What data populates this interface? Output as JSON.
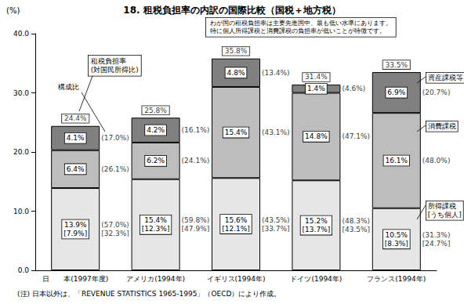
{
  "chart_data": {
    "type": "bar",
    "title": "18. 租税負担率の内訳の国際比較（国税＋地方税）",
    "subtitle": "わが国の租税負担率は主要先進国中、最も低い水準にあります。\n特に個人所得課税と消費課税の負担率が低いことが特徴です。",
    "y_label": "(%)",
    "note": "(注) 日本以外は、「REVENUE STATISTICS 1965-1995」（OECD）により作成。",
    "annotations": {
      "total": "租税負担率\n(対国民所得比)",
      "share": "構成比"
    },
    "categories": [
      "日　　本(1997年度)",
      "アメリカ(1994年)",
      "イギリス(1994年)",
      "ドイツ(1994年)",
      "フランス(1994年)"
    ],
    "stacked": true,
    "data_labels": true,
    "grid": false,
    "ylim": [
      0,
      40
    ],
    "yticks": [
      {
        "value": 0,
        "label": "0.0"
      },
      {
        "value": 10,
        "label": "10.0"
      },
      {
        "value": 20,
        "label": "20.0"
      },
      {
        "value": 30,
        "label": "30.0"
      },
      {
        "value": 40,
        "label": "40.0"
      }
    ],
    "totals": [
      24.4,
      25.8,
      35.8,
      31.4,
      33.5
    ],
    "total_labels": [
      "24.4%",
      "25.8%",
      "35.8%",
      "31.4%",
      "33.5%"
    ],
    "series": [
      {
        "name": "所得課税\n[うち個人]",
        "color": "#e6e6e6",
        "values": [
          13.9,
          15.4,
          15.6,
          15.2,
          10.5
        ],
        "value_labels": [
          "13.9%",
          "15.4%",
          "15.6%",
          "15.2%",
          "10.5%"
        ],
        "individual_values": [
          7.9,
          12.3,
          12.1,
          13.7,
          8.3
        ],
        "individual_labels": [
          "[7.9%]",
          "[12.3%]",
          "[12.1%]",
          "[13.7%]",
          "[8.3%]"
        ],
        "shares": [
          57.0,
          59.8,
          43.5,
          48.3,
          31.3
        ],
        "share_labels": [
          "(57.0%)",
          "(59.8%)",
          "(43.5%)",
          "(48.3%)",
          "(31.3%)"
        ],
        "individual_shares": [
          32.3,
          47.9,
          33.7,
          43.5,
          24.7
        ],
        "individual_share_labels": [
          "[32.3%]",
          "[47.9%]",
          "[33.7%]",
          "[43.5%]",
          "[24.7%]"
        ]
      },
      {
        "name": "消費課税",
        "color": "#bdbdbd",
        "values": [
          6.4,
          6.2,
          15.4,
          14.8,
          16.1
        ],
        "value_labels": [
          "6.4%",
          "6.2%",
          "15.4%",
          "14.8%",
          "16.1%"
        ],
        "shares": [
          26.1,
          24.1,
          43.1,
          47.1,
          48.0
        ],
        "share_labels": [
          "(26.1%)",
          "(24.1%)",
          "(43.1%)",
          "(47.1%)",
          "(48.0%)"
        ]
      },
      {
        "name": "資産課税等",
        "color": "#808080",
        "values": [
          4.1,
          4.2,
          4.8,
          1.4,
          6.9
        ],
        "value_labels": [
          "4.1%",
          "4.2%",
          "4.8%",
          "1.4%",
          "6.9%"
        ],
        "shares": [
          17.0,
          16.1,
          13.4,
          4.6,
          20.7
        ],
        "share_labels": [
          "(17.0%)",
          "(16.1%)",
          "(13.4%)",
          "(4.6%)",
          "(20.7%)"
        ]
      }
    ]
  }
}
